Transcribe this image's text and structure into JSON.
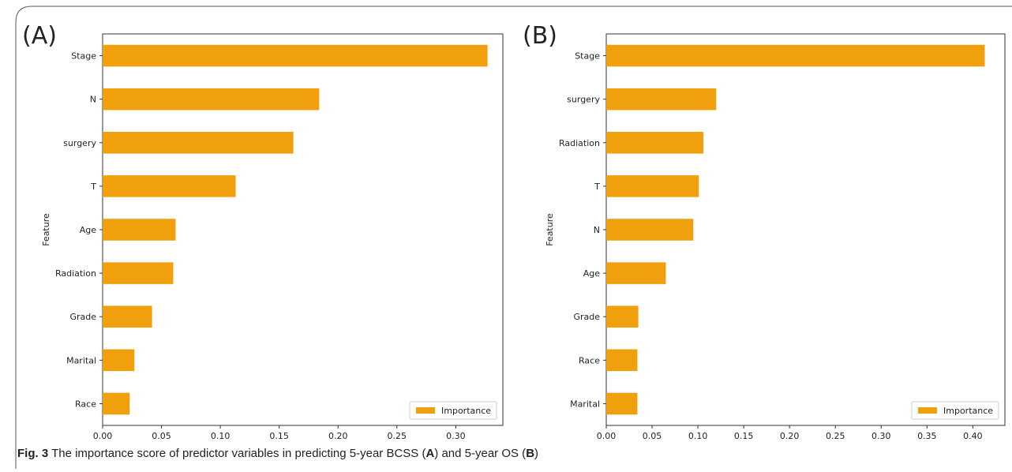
{
  "figure": {
    "caption_label": "Fig. 3",
    "caption_text_1": "The importance score of predictor variables in predicting 5-year BCSS (",
    "caption_bold_1": "A",
    "caption_text_2": ") and 5-year OS (",
    "caption_bold_2": "B",
    "caption_text_3": ")"
  },
  "chart_data": [
    {
      "type": "bar",
      "orientation": "horizontal",
      "panel_label": "(A)",
      "ylabel": "Feature",
      "xlabel": "",
      "xlim": [
        0,
        0.34
      ],
      "xticks": [
        "0.00",
        "0.05",
        "0.10",
        "0.15",
        "0.20",
        "0.25",
        "0.30"
      ],
      "categories": [
        "Stage",
        "N",
        "surgery",
        "T",
        "Age",
        "Radiation",
        "Grade",
        "Marital",
        "Race"
      ],
      "series": [
        {
          "name": "Importance",
          "values": [
            0.327,
            0.184,
            0.162,
            0.113,
            0.062,
            0.06,
            0.042,
            0.027,
            0.023
          ]
        }
      ],
      "legend": "lower-right",
      "bar_color": "#f0a00c"
    },
    {
      "type": "bar",
      "orientation": "horizontal",
      "panel_label": "(B)",
      "ylabel": "Feature",
      "xlabel": "",
      "xlim": [
        0,
        0.435
      ],
      "xticks": [
        "0.00",
        "0.05",
        "0.10",
        "0.15",
        "0.20",
        "0.25",
        "0.30",
        "0.35",
        "0.40"
      ],
      "categories": [
        "Stage",
        "surgery",
        "Radiation",
        "T",
        "N",
        "Age",
        "Grade",
        "Race",
        "Marital"
      ],
      "series": [
        {
          "name": "Importance",
          "values": [
            0.413,
            0.12,
            0.106,
            0.101,
            0.095,
            0.065,
            0.035,
            0.034,
            0.034
          ]
        }
      ],
      "legend": "lower-right",
      "bar_color": "#f0a00c"
    }
  ]
}
